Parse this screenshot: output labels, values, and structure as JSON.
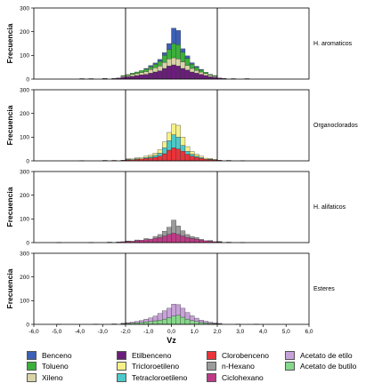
{
  "chart_data": {
    "type": "bar",
    "subtype": "stacked-histogram-small-multiples",
    "xlabel": "Vz",
    "ylabel": "Frecuencia",
    "xlim": [
      -6.0,
      6.0
    ],
    "ylim": [
      0,
      300
    ],
    "yticks": [
      0,
      100,
      200,
      300
    ],
    "xtick_labels": [
      "-6,0",
      "-5,0",
      "-4,0",
      "-3,0",
      "-2,0",
      "-1,0",
      "0,0",
      "1,0",
      "2,0",
      "3,0",
      "4,0",
      "5,0",
      "6,0"
    ],
    "reference_lines_x": [
      -2.0,
      2.0
    ],
    "bin_width": 0.2,
    "bin_start": -6.0,
    "legend_columns": [
      [
        {
          "name": "Benceno",
          "color": "#3d5fb5"
        },
        {
          "name": "Tolueno",
          "color": "#3cb03c"
        },
        {
          "name": "Xileno",
          "color": "#d9d4a8"
        }
      ],
      [
        {
          "name": "Etilbenceno",
          "color": "#6a1e7a"
        },
        {
          "name": "Tricloroetileno",
          "color": "#f7f08a"
        },
        {
          "name": "Tetracloroetileno",
          "color": "#4ec9c9"
        }
      ],
      [
        {
          "name": "Clorobenceno",
          "color": "#e8343a"
        },
        {
          "name": "n-Hexano",
          "color": "#9b9b9b"
        },
        {
          "name": "Ciclohexano",
          "color": "#bd3b86"
        }
      ],
      [
        {
          "name": "Acetato de etilo",
          "color": "#c7a2d8"
        },
        {
          "name": "Acetato de butilo",
          "color": "#86d88a"
        }
      ]
    ],
    "panels": [
      {
        "label": "H. aromaticos",
        "series": [
          {
            "name": "Etilbenceno",
            "color": "#6a1e7a",
            "bins": {
              "-4.0": 2,
              "-3.6": 2,
              "-3.0": 3,
              "-2.6": 3,
              "-2.4": 5,
              "-2.2": 8,
              "-2.0": 10,
              "-1.8": 12,
              "-1.6": 15,
              "-1.4": 18,
              "-1.2": 20,
              "-1.0": 25,
              "-0.8": 30,
              "-0.6": 35,
              "-0.4": 45,
              "-0.2": 55,
              "0.0": 60,
              "0.2": 55,
              "0.4": 45,
              "0.6": 38,
              "0.8": 30,
              "1.0": 25,
              "1.2": 20,
              "1.4": 15,
              "1.6": 10,
              "1.8": 8,
              "2.0": 5,
              "2.2": 3,
              "2.6": 2,
              "3.2": 2
            }
          },
          {
            "name": "Xileno",
            "color": "#d9d4a8",
            "bins": {
              "-2.2": 4,
              "-2.0": 5,
              "-1.8": 8,
              "-1.6": 8,
              "-1.4": 10,
              "-1.2": 12,
              "-1.0": 15,
              "-0.8": 18,
              "-0.6": 20,
              "-0.4": 25,
              "-0.2": 30,
              "0.0": 30,
              "0.2": 30,
              "0.4": 28,
              "0.6": 20,
              "0.8": 15,
              "1.0": 12,
              "1.2": 10,
              "1.4": 8,
              "1.6": 6,
              "1.8": 4
            }
          },
          {
            "name": "Tolueno",
            "color": "#3cb03c",
            "bins": {
              "-2.2": 3,
              "-2.0": 4,
              "-1.8": 5,
              "-1.6": 7,
              "-1.4": 8,
              "-1.2": 10,
              "-1.0": 12,
              "-0.8": 15,
              "-0.6": 20,
              "-0.4": 30,
              "-0.2": 40,
              "0.0": 60,
              "0.2": 60,
              "0.4": 40,
              "0.6": 30,
              "0.8": 18,
              "1.0": 12,
              "1.2": 8,
              "1.4": 6,
              "1.6": 4,
              "1.8": 3
            }
          },
          {
            "name": "Benceno",
            "color": "#3d5fb5",
            "bins": {
              "-1.2": 3,
              "-1.0": 5,
              "-0.8": 5,
              "-0.6": 8,
              "-0.4": 12,
              "-0.2": 25,
              "0.0": 65,
              "0.2": 60,
              "0.4": 15,
              "0.6": 10,
              "0.8": 6,
              "1.0": 5,
              "1.2": 3
            }
          }
        ]
      },
      {
        "label": "Organoclorados",
        "series": [
          {
            "name": "Clorobenceno",
            "color": "#e8343a",
            "bins": {
              "-4.0": 1,
              "-3.0": 2,
              "-2.6": 2,
              "-2.2": 3,
              "-2.0": 4,
              "-1.8": 5,
              "-1.6": 6,
              "-1.4": 8,
              "-1.2": 10,
              "-1.0": 12,
              "-0.8": 15,
              "-0.6": 20,
              "-0.4": 30,
              "-0.2": 45,
              "0.0": 55,
              "0.2": 50,
              "0.4": 40,
              "0.6": 28,
              "0.8": 20,
              "1.0": 15,
              "1.2": 10,
              "1.4": 7,
              "1.6": 5,
              "1.8": 4,
              "2.0": 3,
              "2.4": 2,
              "3.0": 1
            }
          },
          {
            "name": "Tetracloroetileno",
            "color": "#4ec9c9",
            "bins": {
              "-2.0": 2,
              "-1.6": 3,
              "-1.2": 4,
              "-1.0": 5,
              "-0.8": 8,
              "-0.6": 12,
              "-0.4": 25,
              "-0.2": 40,
              "0.0": 55,
              "0.2": 50,
              "0.4": 25,
              "0.6": 12,
              "0.8": 8,
              "1.0": 5,
              "1.2": 4,
              "1.6": 2
            }
          },
          {
            "name": "Tricloroetileno",
            "color": "#f7f08a",
            "bins": {
              "-2.0": 3,
              "-1.8": 3,
              "-1.6": 4,
              "-1.4": 5,
              "-1.2": 6,
              "-1.0": 8,
              "-0.8": 10,
              "-0.6": 15,
              "-0.4": 25,
              "-0.2": 35,
              "0.0": 45,
              "0.2": 50,
              "0.4": 35,
              "0.6": 20,
              "0.8": 12,
              "1.0": 8,
              "1.2": 6,
              "1.4": 4,
              "1.6": 3,
              "1.8": 2
            }
          }
        ]
      },
      {
        "label": "H. alifaticos",
        "series": [
          {
            "name": "Ciclohexano",
            "color": "#bd3b86",
            "bins": {
              "-5.0": 1,
              "-3.6": 1,
              "-2.8": 2,
              "-2.4": 3,
              "-2.2": 4,
              "-2.0": 5,
              "-1.8": 6,
              "-1.6": 8,
              "-1.4": 10,
              "-1.2": 12,
              "-1.0": 15,
              "-0.8": 18,
              "-0.6": 22,
              "-0.4": 28,
              "-0.2": 35,
              "0.0": 40,
              "0.2": 35,
              "0.4": 28,
              "0.6": 22,
              "0.8": 18,
              "1.0": 15,
              "1.2": 10,
              "1.4": 8,
              "1.6": 6,
              "1.8": 4,
              "2.0": 3,
              "2.4": 2,
              "3.0": 1
            }
          },
          {
            "name": "n-Hexano",
            "color": "#9b9b9b",
            "bins": {
              "-2.0": 2,
              "-1.6": 3,
              "-1.2": 5,
              "-0.8": 8,
              "-0.6": 12,
              "-0.4": 20,
              "-0.2": 30,
              "0.0": 55,
              "0.2": 35,
              "0.4": 22,
              "0.6": 12,
              "0.8": 8,
              "1.0": 6,
              "1.2": 4,
              "1.6": 3,
              "2.0": 2
            }
          }
        ]
      },
      {
        "label": "Esteres",
        "series": [
          {
            "name": "Acetato de butilo",
            "color": "#86d88a",
            "bins": {
              "-5.0": 1,
              "-3.4": 1,
              "-2.6": 2,
              "-2.2": 3,
              "-2.0": 4,
              "-1.8": 5,
              "-1.6": 6,
              "-1.4": 8,
              "-1.2": 10,
              "-1.0": 12,
              "-0.8": 15,
              "-0.6": 18,
              "-0.4": 22,
              "-0.2": 28,
              "0.0": 35,
              "0.2": 38,
              "0.4": 30,
              "0.6": 22,
              "0.8": 16,
              "1.0": 12,
              "1.2": 8,
              "1.4": 6,
              "1.6": 4,
              "1.8": 3,
              "2.0": 2,
              "2.8": 1,
              "3.6": 1
            }
          },
          {
            "name": "Acetato de etilo",
            "color": "#c7a2d8",
            "bins": {
              "-2.2": 2,
              "-2.0": 3,
              "-1.8": 4,
              "-1.6": 6,
              "-1.4": 8,
              "-1.2": 12,
              "-1.0": 15,
              "-0.8": 20,
              "-0.6": 28,
              "-0.4": 35,
              "-0.2": 40,
              "0.0": 50,
              "0.2": 45,
              "0.4": 38,
              "0.6": 28,
              "0.8": 20,
              "1.0": 14,
              "1.2": 10,
              "1.4": 7,
              "1.6": 5,
              "1.8": 3,
              "2.0": 2
            }
          }
        ]
      }
    ]
  }
}
